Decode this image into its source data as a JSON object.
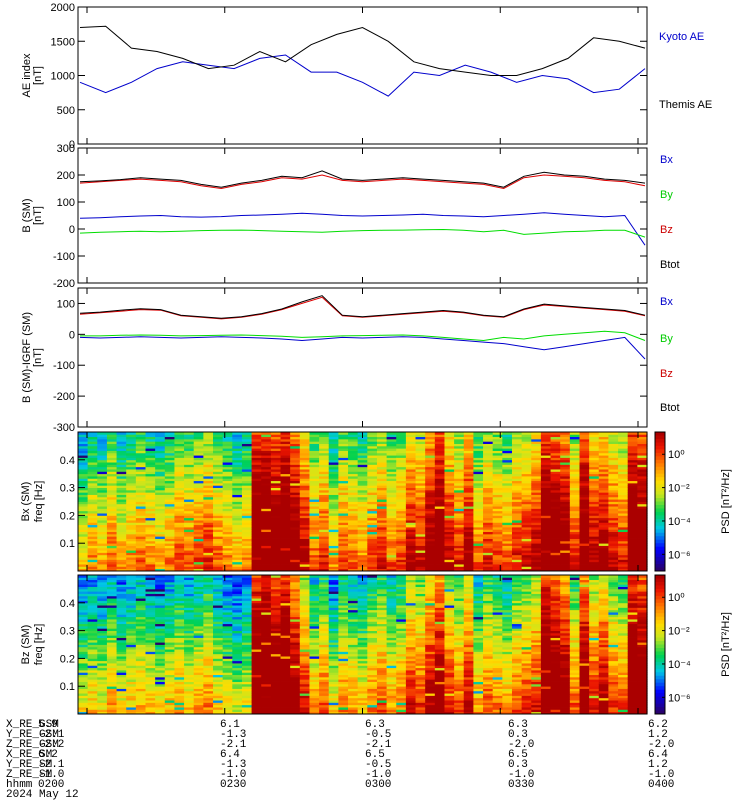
{
  "chart_data": [
    {
      "type": "line",
      "panel": "ae",
      "ylabel": "AE index",
      "yunit": "[nT]",
      "ylim": [
        0,
        2000
      ],
      "yticks": [
        "0",
        "500",
        "1000",
        "1500",
        "2000"
      ],
      "x": [
        "0152",
        "0158",
        "0204",
        "0210",
        "0216",
        "0222",
        "0228",
        "0234",
        "0240",
        "0246",
        "0252",
        "0258",
        "0304",
        "0310",
        "0316",
        "0322",
        "0328",
        "0334",
        "0340",
        "0346",
        "0352",
        "0358",
        "0402"
      ],
      "series": [
        {
          "name": "Kyoto AE",
          "color": "#0000cc",
          "values": [
            900,
            750,
            900,
            1100,
            1200,
            1150,
            1100,
            1250,
            1300,
            1050,
            1050,
            900,
            700,
            1050,
            1000,
            1150,
            1050,
            900,
            1000,
            950,
            750,
            800,
            1100
          ]
        },
        {
          "name": "Themis AE",
          "color": "#000000",
          "values": [
            1700,
            1720,
            1400,
            1350,
            1250,
            1100,
            1150,
            1350,
            1200,
            1450,
            1600,
            1700,
            1500,
            1200,
            1100,
            1050,
            1000,
            1000,
            1100,
            1250,
            1550,
            1500,
            1400
          ]
        }
      ]
    },
    {
      "type": "line",
      "panel": "b_sm",
      "ylabel": "B (SM)",
      "yunit": "[nT]",
      "ylim": [
        -200,
        300
      ],
      "yticks": [
        "-200",
        "-100",
        "0",
        "100",
        "200",
        "300"
      ],
      "legend": [
        "Bx",
        "By",
        "Bz",
        "Btot"
      ],
      "series": [
        {
          "name": "Bx",
          "color": "#0000cc",
          "values": [
            40,
            42,
            45,
            48,
            50,
            45,
            44,
            46,
            50,
            52,
            55,
            58,
            55,
            50,
            48,
            50,
            52,
            55,
            50,
            48,
            45,
            50,
            55,
            60,
            55,
            50,
            45,
            50,
            -60
          ]
        },
        {
          "name": "By",
          "color": "#00dd00",
          "values": [
            -15,
            -12,
            -10,
            -8,
            -10,
            -8,
            -6,
            -5,
            -4,
            -6,
            -8,
            -10,
            -12,
            -8,
            -6,
            -5,
            -4,
            -3,
            -2,
            -5,
            -10,
            -5,
            -20,
            -15,
            -10,
            -8,
            -5,
            -5,
            -30
          ]
        },
        {
          "name": "Bz",
          "color": "#dd0000",
          "values": [
            170,
            175,
            180,
            185,
            180,
            175,
            160,
            150,
            165,
            175,
            190,
            185,
            200,
            180,
            175,
            180,
            185,
            180,
            175,
            170,
            165,
            150,
            190,
            200,
            195,
            190,
            180,
            175,
            160
          ]
        },
        {
          "name": "Btot",
          "color": "#000000",
          "values": [
            175,
            178,
            183,
            190,
            185,
            180,
            165,
            155,
            170,
            180,
            195,
            190,
            215,
            185,
            180,
            185,
            190,
            185,
            180,
            175,
            170,
            155,
            195,
            210,
            200,
            195,
            185,
            180,
            170
          ]
        }
      ]
    },
    {
      "type": "line",
      "panel": "b_sm_minus_igrf",
      "ylabel": "B (SM)-IGRF (SM)",
      "yunit": "[nT]",
      "ylim": [
        -300,
        150
      ],
      "yticks": [
        "-300",
        "-200",
        "-100",
        "0",
        "100"
      ],
      "legend": [
        "Bx",
        "By",
        "Bz",
        "Btot"
      ],
      "series": [
        {
          "name": "Bx",
          "color": "#0000cc",
          "values": [
            -10,
            -12,
            -10,
            -8,
            -10,
            -12,
            -10,
            -8,
            -10,
            -12,
            -15,
            -20,
            -15,
            -10,
            -12,
            -10,
            -8,
            -10,
            -15,
            -20,
            -25,
            -30,
            -40,
            -50,
            -40,
            -30,
            -20,
            -10,
            -80
          ]
        },
        {
          "name": "By",
          "color": "#00dd00",
          "values": [
            -5,
            -5,
            -3,
            -2,
            -3,
            -5,
            -4,
            -3,
            -2,
            -4,
            -6,
            -10,
            -8,
            -5,
            -4,
            -3,
            -2,
            -5,
            -10,
            -15,
            -20,
            -10,
            -15,
            -5,
            0,
            5,
            10,
            5,
            -20
          ]
        },
        {
          "name": "Bz",
          "color": "#dd0000",
          "values": [
            65,
            70,
            75,
            80,
            78,
            60,
            55,
            50,
            55,
            65,
            80,
            100,
            120,
            60,
            55,
            60,
            65,
            70,
            75,
            70,
            60,
            55,
            80,
            95,
            90,
            85,
            80,
            75,
            60
          ]
        },
        {
          "name": "Btot",
          "color": "#000000",
          "values": [
            68,
            72,
            78,
            83,
            80,
            62,
            57,
            52,
            57,
            67,
            82,
            105,
            125,
            62,
            57,
            62,
            67,
            72,
            77,
            72,
            62,
            57,
            82,
            98,
            92,
            87,
            82,
            77,
            62
          ]
        }
      ]
    },
    {
      "type": "heatmap",
      "panel": "bx_spec",
      "ylabel": "Bx (SM)",
      "ylabel2": "freq",
      "yunit": "[Hz]",
      "ylim": [
        0,
        0.5
      ],
      "yticks": [
        "0.1",
        "0.2",
        "0.3",
        "0.4"
      ],
      "colorbar_label": "PSD [nT²/Hz]",
      "colorbar_ticks": [
        "10⁰",
        "10⁻²",
        "10⁻⁴",
        "10⁻⁶"
      ],
      "column_levels": [
        0.35,
        0.45,
        0.4,
        0.5,
        0.4,
        0.45,
        0.5,
        0.45,
        0.4,
        0.45,
        0.55,
        0.5,
        0.55,
        0.6,
        0.5,
        0.45,
        0.4,
        0.45,
        0.95,
        0.98,
        0.9,
        0.95,
        0.85,
        0.7,
        0.5,
        0.6,
        0.4,
        0.55,
        0.5,
        0.45,
        0.55,
        0.6,
        0.5,
        0.55,
        0.7,
        0.65,
        0.8,
        0.9,
        0.7,
        0.6,
        0.75,
        0.5,
        0.6,
        0.55,
        0.5,
        0.6,
        0.65,
        0.7,
        0.95,
        0.9,
        0.85,
        0.6,
        0.9,
        0.7,
        0.75,
        0.65,
        0.6,
        0.95,
        0.9
      ]
    },
    {
      "type": "heatmap",
      "panel": "bz_spec",
      "ylabel": "Bz (SM)",
      "ylabel2": "freq",
      "yunit": "[Hz]",
      "ylim": [
        0,
        0.5
      ],
      "yticks": [
        "0.1",
        "0.2",
        "0.3",
        "0.4"
      ],
      "colorbar_label": "PSD [nT²/Hz]",
      "colorbar_ticks": [
        "10⁰",
        "10⁻²",
        "10⁻⁴",
        "10⁻⁶"
      ],
      "column_levels": [
        0.3,
        0.35,
        0.3,
        0.4,
        0.3,
        0.35,
        0.4,
        0.35,
        0.3,
        0.35,
        0.4,
        0.35,
        0.4,
        0.45,
        0.35,
        0.3,
        0.25,
        0.3,
        0.95,
        0.98,
        0.9,
        0.95,
        0.8,
        0.6,
        0.4,
        0.5,
        0.3,
        0.45,
        0.4,
        0.35,
        0.45,
        0.5,
        0.4,
        0.45,
        0.6,
        0.55,
        0.7,
        0.8,
        0.6,
        0.5,
        0.65,
        0.4,
        0.5,
        0.45,
        0.4,
        0.5,
        0.55,
        0.6,
        0.95,
        0.9,
        0.8,
        0.5,
        0.85,
        0.6,
        0.7,
        0.55,
        0.5,
        0.95,
        0.9
      ]
    }
  ],
  "legends": {
    "ae": [
      "Kyoto AE",
      "Themis AE"
    ],
    "b": [
      "Bx",
      "By",
      "Bz",
      "Btot"
    ]
  },
  "ephemeris": {
    "rows": [
      {
        "label": "X_RE_GSM",
        "values": [
          "5.9",
          "6.1",
          "6.3",
          "6.3",
          "6.2"
        ]
      },
      {
        "label": "Y_RE_GSM",
        "values": [
          "-2.1",
          "-1.3",
          "-0.5",
          "0.3",
          "1.2"
        ]
      },
      {
        "label": "Z_RE_GSM",
        "values": [
          "-2.2",
          "-2.1",
          "-2.1",
          "-2.0",
          "-2.0"
        ]
      },
      {
        "label": "X_RE_SM",
        "values": [
          "6.2",
          "6.4",
          "6.5",
          "6.5",
          "6.4"
        ]
      },
      {
        "label": "Y_RE_SM",
        "values": [
          "-2.1",
          "-1.3",
          "-0.5",
          "0.3",
          "1.2"
        ]
      },
      {
        "label": "Z_RE_SM",
        "values": [
          "-1.0",
          "-1.0",
          "-1.0",
          "-1.0",
          "-1.0"
        ]
      },
      {
        "label": "hhmm",
        "values": [
          "0200",
          "0230",
          "0300",
          "0330",
          "0400"
        ]
      }
    ],
    "date": "2024 May 12"
  }
}
